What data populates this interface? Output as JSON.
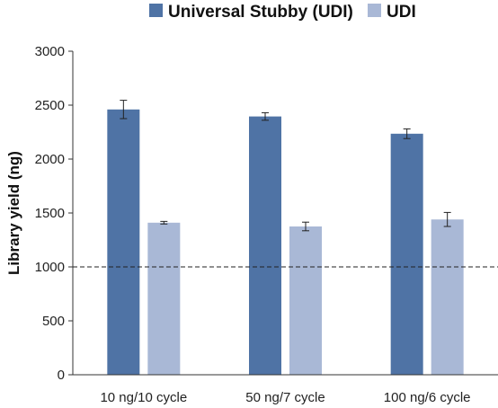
{
  "chart_data": {
    "type": "bar",
    "title": "",
    "xlabel": "",
    "ylabel": "Library yield (ng)",
    "ylim": [
      0,
      3000
    ],
    "yticks": [
      0,
      500,
      1000,
      1500,
      2000,
      2500,
      3000
    ],
    "categories": [
      "10 ng/10 cycle",
      "50 ng/7 cycle",
      "100 ng/6 cycle"
    ],
    "series": [
      {
        "name": "Universal Stubby (UDI)",
        "color": "#4f73a5",
        "values": [
          2460,
          2395,
          2235
        ],
        "errors": [
          85,
          35,
          45
        ]
      },
      {
        "name": "UDI",
        "color": "#a9b8d6",
        "values": [
          1410,
          1375,
          1440
        ],
        "errors": [
          12,
          40,
          65
        ]
      }
    ],
    "reference_line": {
      "value": 1000,
      "style": "dashed"
    },
    "legend": "top",
    "grid": false
  }
}
